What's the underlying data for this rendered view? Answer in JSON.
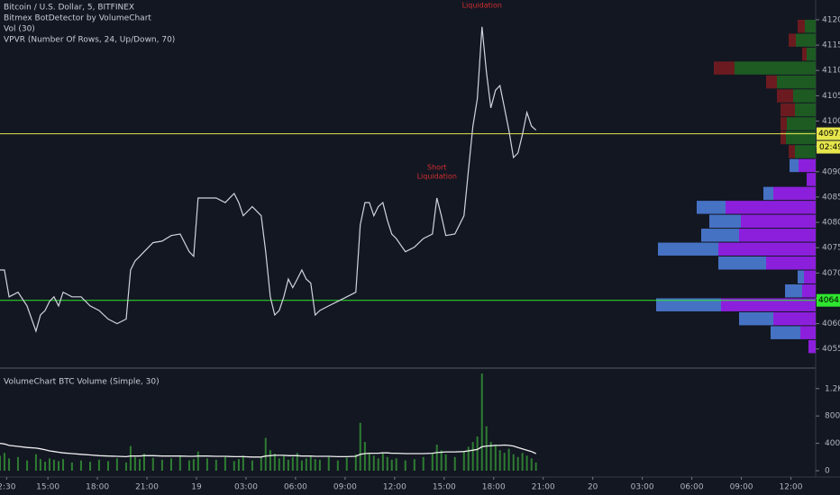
{
  "chart_data": [
    {
      "type": "line",
      "title": "Bitcoin / U.S. Dollar, 5, BITFINEX",
      "indicators": [
        "Bitmex BotDetector by VolumeChart",
        "Vol (30)",
        "VPVR (Number Of Rows, 24, Up/Down, 70)"
      ],
      "annotations": [
        {
          "lines": [
            "Short",
            "Liquidation"
          ],
          "x": 38.56,
          "color": "#d32f2f"
        },
        {
          "lines": [
            "Short",
            "Liquidation"
          ],
          "x": 41.29,
          "color": "#d32f2f"
        }
      ],
      "xlim": [
        12.1,
        61.5
      ],
      "ylim": [
        4051.4,
        4123.9
      ],
      "yticks": [
        {
          "value": 4055,
          "label": "4055.0"
        },
        {
          "value": 4060,
          "label": "4060.0"
        },
        {
          "value": 4065,
          "label": "4065.0"
        },
        {
          "value": 4070,
          "label": "4070.0"
        },
        {
          "value": 4075,
          "label": "4075.0"
        },
        {
          "value": 4080,
          "label": "4080.0"
        },
        {
          "value": 4085,
          "label": "4085.0"
        },
        {
          "value": 4090,
          "label": "4090.0"
        },
        {
          "value": 4095,
          "label": "4095.0"
        },
        {
          "value": 4100,
          "label": "4100.0"
        },
        {
          "value": 4105,
          "label": "4105.0"
        },
        {
          "value": 4110,
          "label": "4110.0"
        },
        {
          "value": 4115,
          "label": "4115.0"
        },
        {
          "value": 4120,
          "label": "4120.0"
        }
      ],
      "price_lines": [
        {
          "value": 4097.5,
          "color": "#e6e64c",
          "countdown": "02:49"
        },
        {
          "value": 4064.6,
          "color": "#2ee62e"
        }
      ],
      "x": [
        12.1,
        12.37,
        12.65,
        13.19,
        13.74,
        14.28,
        14.55,
        14.83,
        15.1,
        15.37,
        15.65,
        15.92,
        16.46,
        17.01,
        17.56,
        18.1,
        18.65,
        19.19,
        19.74,
        20.01,
        20.28,
        20.56,
        20.83,
        21.37,
        21.92,
        22.47,
        23.01,
        23.56,
        23.83,
        24.1,
        24.65,
        25.19,
        25.74,
        26.28,
        26.56,
        26.83,
        27.38,
        27.92,
        28.19,
        28.47,
        28.74,
        29.01,
        29.29,
        29.56,
        29.83,
        30.1,
        30.38,
        30.65,
        30.92,
        31.19,
        31.47,
        32.01,
        32.56,
        33.1,
        33.65,
        33.92,
        34.2,
        34.47,
        34.74,
        35.01,
        35.29,
        35.56,
        35.83,
        36.1,
        36.65,
        37.2,
        37.74,
        38.29,
        38.56,
        38.83,
        39.1,
        39.65,
        40.2,
        40.47,
        40.74,
        41.01,
        41.29,
        41.56,
        41.83,
        42.11,
        42.38,
        42.65,
        42.92,
        43.2,
        43.47,
        43.74,
        44.01,
        44.29,
        44.56
      ],
      "series": [
        {
          "name": "BTCUSD",
          "color": "#d1d4dc",
          "values": [
            4070.6,
            4070.6,
            4065.3,
            4066.2,
            4063.5,
            4058.5,
            4061.7,
            4062.6,
            4064.4,
            4065.3,
            4063.5,
            4066.2,
            4065.3,
            4065.3,
            4063.5,
            4062.6,
            4060.9,
            4060.0,
            4060.9,
            4070.6,
            4072.4,
            4073.3,
            4074.2,
            4076.0,
            4076.3,
            4077.4,
            4077.7,
            4074.2,
            4073.3,
            4084.8,
            4084.8,
            4084.8,
            4083.9,
            4085.7,
            4083.9,
            4081.3,
            4083.1,
            4081.3,
            4074.2,
            4065.3,
            4061.7,
            4062.6,
            4065.3,
            4068.8,
            4067.1,
            4068.8,
            4070.6,
            4068.8,
            4068.0,
            4061.7,
            4062.6,
            4063.5,
            4064.4,
            4065.3,
            4066.2,
            4079.5,
            4083.9,
            4083.9,
            4081.3,
            4083.1,
            4083.9,
            4080.4,
            4077.7,
            4076.8,
            4074.2,
            4075.1,
            4076.8,
            4077.7,
            4084.8,
            4081.3,
            4077.4,
            4077.7,
            4081.3,
            4090.2,
            4099.0,
            4104.4,
            4118.6,
            4109.7,
            4102.6,
            4106.1,
            4107.0,
            4102.6,
            4098.2,
            4092.8,
            4093.7,
            4097.3,
            4101.7,
            4099.0,
            4098.2
          ]
        }
      ],
      "vpvr": {
        "bins": [
          4054,
          4056.75,
          4059.5,
          4062.25,
          4065,
          4067.75,
          4070.5,
          4073.25,
          4076,
          4078.75,
          4081.5,
          4084.25,
          4087,
          4089.75,
          4092.5,
          4095.25,
          4098,
          4100.75,
          4103.5,
          4106.25,
          4109,
          4111.75,
          4114.5,
          4117.25,
          4120
        ],
        "right": [
          8,
          17,
          47,
          105,
          15,
          13,
          55,
          108,
          85,
          83,
          100,
          47,
          10,
          19,
          23,
          33,
          32,
          23,
          25,
          43,
          90,
          10,
          22,
          12
        ],
        "left": [
          0,
          33,
          38,
          72,
          19,
          7,
          53,
          67,
          42,
          35,
          32,
          11,
          0,
          10,
          7,
          6,
          7,
          16,
          18,
          12,
          23,
          5,
          8,
          8
        ],
        "right_colors": [
          "#8c1fdc",
          "#8c1fdc",
          "#8c1fdc",
          "#8c1fdc",
          "#8c1fdc",
          "#8c1fdc",
          "#8c1fdc",
          "#8c1fdc",
          "#8c1fdc",
          "#8c1fdc",
          "#8c1fdc",
          "#8c1fdc",
          "#8c1fdc",
          "#8c1fdc",
          "#1d5b22",
          "#1d5b22",
          "#1d5b22",
          "#1d5b22",
          "#1d5b22",
          "#1d5b22",
          "#1d5b22",
          "#1d5b22",
          "#1d5b22",
          "#1d5b22"
        ],
        "left_colors": [
          "#4672c4",
          "#4672c4",
          "#4672c4",
          "#4672c4",
          "#4672c4",
          "#4672c4",
          "#4672c4",
          "#4672c4",
          "#4672c4",
          "#4672c4",
          "#4672c4",
          "#4672c4",
          "#4672c4",
          "#4672c4",
          "#6b1b1f",
          "#6b1b1f",
          "#6b1b1f",
          "#6b1b1f",
          "#6b1b1f",
          "#6b1b1f",
          "#6b1b1f",
          "#6b1b1f",
          "#6b1b1f",
          "#6b1b1f"
        ]
      }
    },
    {
      "type": "bar",
      "title": "VolumeChart BTC Volume (Simple, 30)",
      "xlim": [
        12.1,
        61.5
      ],
      "xticks": [
        {
          "value": 12.5,
          "label": "2:30"
        },
        {
          "value": 15,
          "label": "15:00"
        },
        {
          "value": 18,
          "label": "18:00"
        },
        {
          "value": 21,
          "label": "21:00"
        },
        {
          "value": 24,
          "label": "19"
        },
        {
          "value": 27,
          "label": "03:00"
        },
        {
          "value": 30,
          "label": "06:00"
        },
        {
          "value": 33,
          "label": "09:00"
        },
        {
          "value": 36,
          "label": "12:00"
        },
        {
          "value": 39,
          "label": "15:00"
        },
        {
          "value": 42,
          "label": "18:00"
        },
        {
          "value": 45,
          "label": "21:00"
        },
        {
          "value": 48,
          "label": "20"
        },
        {
          "value": 51,
          "label": "03:00"
        },
        {
          "value": 54,
          "label": "06:00"
        },
        {
          "value": 57,
          "label": "09:00"
        },
        {
          "value": 60,
          "label": "12:00"
        }
      ],
      "ylim": [
        0,
        1460
      ],
      "yticks": [
        0,
        400,
        800,
        {
          "value": 1200,
          "label": "1.2K"
        }
      ],
      "x": [
        12.1,
        12.37,
        12.65,
        13.19,
        13.74,
        14.28,
        14.55,
        14.83,
        15.1,
        15.37,
        15.65,
        15.92,
        16.46,
        17.01,
        17.56,
        18.1,
        18.65,
        19.19,
        19.74,
        20.01,
        20.28,
        20.56,
        20.83,
        21.37,
        21.92,
        22.47,
        23.01,
        23.56,
        23.83,
        24.1,
        24.65,
        25.19,
        25.74,
        26.28,
        26.56,
        26.83,
        27.38,
        27.92,
        28.19,
        28.47,
        28.74,
        29.01,
        29.29,
        29.56,
        29.83,
        30.1,
        30.38,
        30.65,
        30.92,
        31.19,
        31.47,
        32.01,
        32.56,
        33.1,
        33.65,
        33.92,
        34.2,
        34.47,
        34.74,
        35.01,
        35.29,
        35.56,
        35.83,
        36.1,
        36.65,
        37.2,
        37.74,
        38.29,
        38.56,
        38.83,
        39.1,
        39.65,
        40.2,
        40.47,
        40.74,
        41.01,
        41.29,
        41.56,
        41.83,
        42.11,
        42.38,
        42.65,
        42.92,
        43.2,
        43.47,
        43.74,
        44.01,
        44.29,
        44.56
      ],
      "series": [
        {
          "name": "Volume",
          "type": "bar",
          "color": "#2e7d32",
          "values": [
            220,
            260,
            180,
            200,
            150,
            240,
            170,
            130,
            180,
            160,
            140,
            170,
            120,
            150,
            130,
            160,
            140,
            180,
            120,
            360,
            200,
            170,
            250,
            190,
            160,
            180,
            210,
            150,
            170,
            280,
            180,
            160,
            200,
            140,
            170,
            220,
            150,
            190,
            480,
            300,
            250,
            180,
            220,
            160,
            200,
            260,
            150,
            180,
            210,
            170,
            160,
            200,
            150,
            190,
            240,
            700,
            420,
            260,
            220,
            180,
            250,
            200,
            160,
            180,
            150,
            170,
            200,
            260,
            380,
            300,
            240,
            200,
            280,
            350,
            420,
            500,
            1420,
            650,
            420,
            380,
            300,
            260,
            320,
            240,
            200,
            260,
            220,
            180,
            120
          ]
        },
        {
          "name": "SMA",
          "type": "line",
          "color": "#f0f0f0",
          "values": [
            400,
            390,
            370,
            355,
            340,
            330,
            320,
            305,
            290,
            280,
            270,
            260,
            250,
            240,
            230,
            220,
            215,
            210,
            205,
            215,
            215,
            215,
            220,
            220,
            215,
            215,
            215,
            210,
            210,
            215,
            215,
            210,
            210,
            205,
            205,
            205,
            200,
            200,
            215,
            220,
            225,
            225,
            225,
            220,
            220,
            220,
            215,
            215,
            215,
            210,
            210,
            210,
            205,
            205,
            210,
            240,
            250,
            255,
            255,
            255,
            260,
            260,
            255,
            255,
            250,
            250,
            250,
            255,
            265,
            270,
            275,
            275,
            280,
            290,
            300,
            310,
            350,
            360,
            365,
            370,
            370,
            375,
            370,
            360,
            340,
            320,
            300,
            280,
            250
          ]
        }
      ]
    }
  ]
}
